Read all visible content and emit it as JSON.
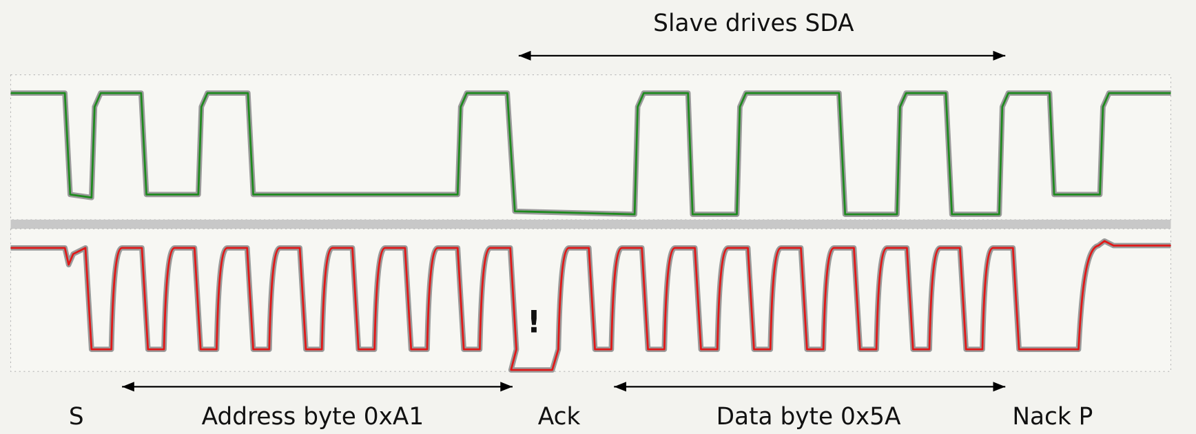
{
  "top_annotation": "Slave drives SDA",
  "marker": "!",
  "bottom_labels": [
    "S",
    "Address byte 0xA1",
    "Ack",
    "Data byte 0x5A",
    "Nack P"
  ]
}
